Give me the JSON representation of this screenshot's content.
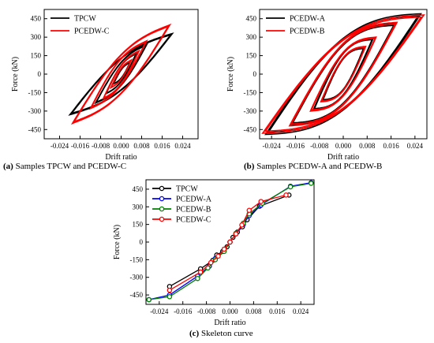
{
  "chart_data": [
    {
      "type": "line",
      "caption_letter": "(a)",
      "caption_text": " Samples TPCW and PCEDW-C",
      "xlabel": "Drift ratio",
      "ylabel": "Force (kN)",
      "xlim": [
        -0.03,
        0.03
      ],
      "ylim": [
        -525,
        525
      ],
      "x_ticks": [
        -0.024,
        -0.016,
        -0.008,
        0.0,
        0.008,
        0.016,
        0.024
      ],
      "y_ticks": [
        -450,
        -300,
        -150,
        0,
        150,
        300,
        450
      ],
      "legend_position": "top-left",
      "series": [
        {
          "name": "TPCW",
          "color": "#000000",
          "cycles": [
            [
              0.0035,
              95
            ],
            [
              0.006,
              170
            ],
            [
              0.01,
              240
            ],
            [
              0.02,
              330
            ]
          ],
          "neg_cycles": [
            [
              0.003,
              -80
            ],
            [
              0.006,
              -160
            ],
            [
              0.01,
              -235
            ],
            [
              -0.001,
              0
            ],
            [
              -0.02,
              -370
            ]
          ]
        },
        {
          "name": "PCEDW-C",
          "color": "#ff0000",
          "cycles": [
            [
              0.004,
              115
            ],
            [
              0.007,
              190
            ],
            [
              0.01,
              270
            ],
            [
              0.019,
              400
            ]
          ],
          "neg_cycles": [
            [
              0.004,
              -110
            ],
            [
              0.007,
              -200
            ],
            [
              0.012,
              -280
            ],
            [
              -0.001,
              0
            ],
            [
              -0.02,
              -405
            ]
          ]
        }
      ]
    },
    {
      "type": "line",
      "caption_letter": "(b)",
      "caption_text": " Samples PCEDW-A and PCEDW-B",
      "xlabel": "Drift ratio",
      "ylabel": "Force (kN)",
      "xlim": [
        -0.028,
        0.028
      ],
      "ylim": [
        -525,
        525
      ],
      "x_ticks": [
        -0.024,
        -0.016,
        -0.008,
        0.0,
        0.008,
        0.016,
        0.024
      ],
      "y_ticks": [
        -450,
        -300,
        -150,
        0,
        150,
        300,
        450
      ],
      "legend_position": "top-left",
      "series": [
        {
          "name": "PCEDW-A",
          "color": "#000000",
          "cycles": [
            [
              0.007,
              215
            ],
            [
              0.01,
              290
            ],
            [
              0.0175,
              410
            ],
            [
              0.026,
              490
            ]
          ]
        },
        {
          "name": "PCEDW-B",
          "color": "#ff0000",
          "cycles": [
            [
              0.0075,
              225
            ],
            [
              0.011,
              300
            ],
            [
              0.018,
              420
            ],
            [
              0.027,
              480
            ]
          ]
        }
      ]
    },
    {
      "type": "line",
      "caption_letter": "(c)",
      "caption_text": " Skeleton curve",
      "xlabel": "Drift ratio",
      "ylabel": "Force (kN)",
      "xlim": [
        -0.0285,
        0.0285
      ],
      "ylim": [
        -530,
        530
      ],
      "x_ticks": [
        -0.024,
        -0.016,
        -0.008,
        0.0,
        0.008,
        0.016,
        0.024
      ],
      "y_ticks": [
        -450,
        -300,
        -150,
        0,
        150,
        300,
        450
      ],
      "legend_position": "top-left",
      "series": [
        {
          "name": "TPCW",
          "color": "#000000",
          "points": [
            [
              -0.0205,
              -378
            ],
            [
              -0.01,
              -228
            ],
            [
              -0.0058,
              -155
            ],
            [
              -0.0045,
              -110
            ],
            [
              -0.0025,
              -80
            ],
            [
              -0.001,
              -40
            ],
            [
              0,
              0
            ],
            [
              0.001,
              40
            ],
            [
              0.0025,
              85
            ],
            [
              0.0042,
              130
            ],
            [
              0.0058,
              190
            ],
            [
              0.01,
              305
            ],
            [
              0.02,
              400
            ]
          ]
        },
        {
          "name": "PCEDW-A",
          "color": "#0000ff",
          "points": [
            [
              -0.0275,
              -490
            ],
            [
              -0.0205,
              -450
            ],
            [
              -0.011,
              -290
            ],
            [
              -0.007,
              -205
            ],
            [
              -0.005,
              -140
            ],
            [
              -0.002,
              -75
            ],
            [
              0,
              0
            ],
            [
              0.002,
              70
            ],
            [
              0.0045,
              150
            ],
            [
              0.0065,
              225
            ],
            [
              0.0105,
              315
            ],
            [
              0.0205,
              475
            ],
            [
              0.0275,
              505
            ]
          ]
        },
        {
          "name": "PCEDW-B",
          "color": "#008000",
          "points": [
            [
              -0.0275,
              -490
            ],
            [
              -0.0205,
              -465
            ],
            [
              -0.011,
              -310
            ],
            [
              -0.0075,
              -220
            ],
            [
              -0.005,
              -150
            ],
            [
              -0.002,
              -80
            ],
            [
              0,
              0
            ],
            [
              0.002,
              75
            ],
            [
              0.0045,
              160
            ],
            [
              0.0065,
              240
            ],
            [
              0.011,
              330
            ],
            [
              0.0205,
              470
            ],
            [
              0.0275,
              500
            ]
          ]
        },
        {
          "name": "PCEDW-C",
          "color": "#ff0000",
          "points": [
            [
              -0.0205,
              -410
            ],
            [
              -0.01,
              -255
            ],
            [
              -0.0065,
              -175
            ],
            [
              -0.004,
              -120
            ],
            [
              -0.002,
              -60
            ],
            [
              0,
              0
            ],
            [
              0.002,
              70
            ],
            [
              0.004,
              145
            ],
            [
              0.0065,
              270
            ],
            [
              0.0105,
              345
            ],
            [
              0.019,
              400
            ]
          ]
        }
      ]
    }
  ]
}
